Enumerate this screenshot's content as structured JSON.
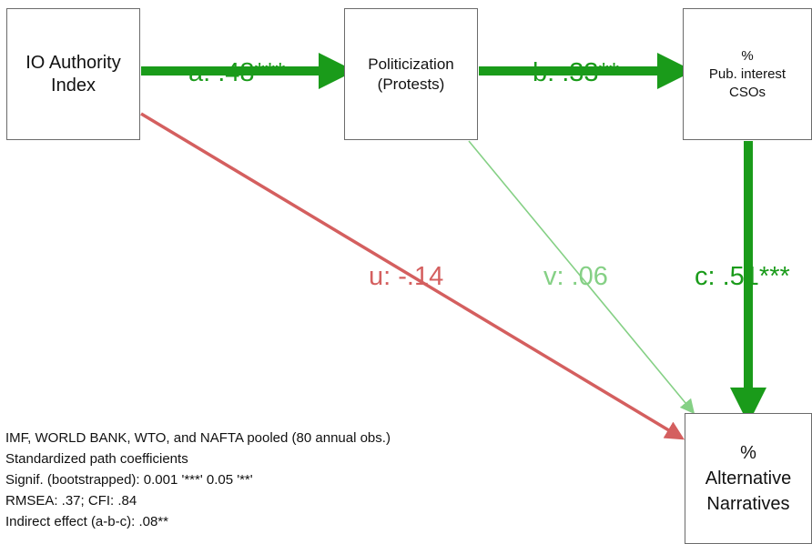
{
  "nodes": {
    "authority": "IO Authority\nIndex",
    "politicization": "Politicization\n(Protests)",
    "csos": "%\nPub. interest\nCSOs",
    "alternative": "%\nAlternative\nNarratives"
  },
  "paths": {
    "a": {
      "label": "a: .48***",
      "value": 0.48,
      "color": "#1a9b1a"
    },
    "b": {
      "label": "b: .33**",
      "value": 0.33,
      "color": "#1a9b1a"
    },
    "c": {
      "label": "c: .51***",
      "value": 0.51,
      "color": "#1a9b1a"
    },
    "u": {
      "label": "u: -.14",
      "value": -0.14,
      "color": "#d45f5f"
    },
    "v": {
      "label": "v: .06",
      "value": 0.06,
      "color": "#85d085"
    }
  },
  "notes": [
    "IMF, WORLD BANK, WTO, and NAFTA pooled (80 annual obs.)",
    "Standardized path coefficients",
    "Signif. (bootstrapped):  0.001 '***' 0.05 '**'",
    "RMSEA: .37; CFI: .84",
    "Indirect effect (a-b-c): .08**"
  ]
}
